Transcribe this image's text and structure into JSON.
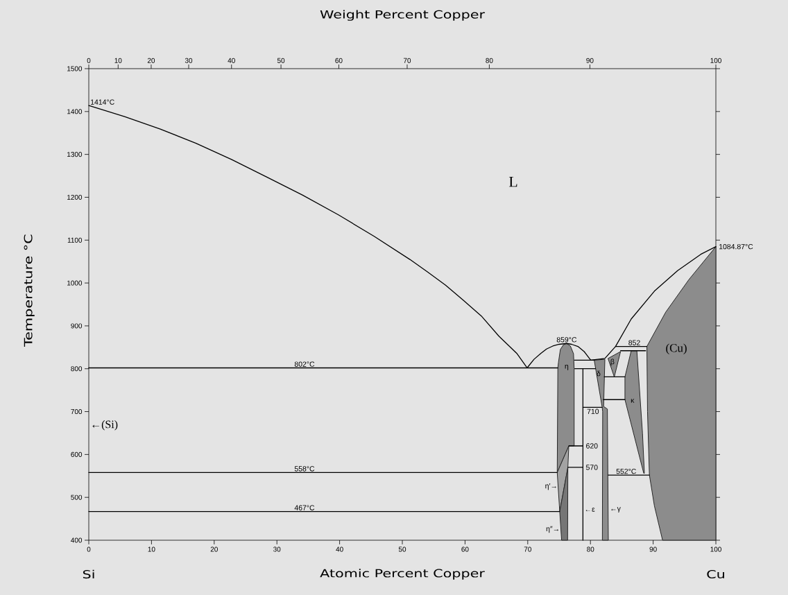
{
  "chart_data": {
    "type": "line",
    "xlabel": "Atomic Percent Copper",
    "ylabel": "Temperature °C",
    "x2label": "Weight Percent Copper",
    "xlim": [
      0,
      100
    ],
    "ylim": [
      400,
      1500
    ],
    "xticks": [
      0,
      10,
      20,
      30,
      40,
      50,
      60,
      70,
      80,
      90,
      100
    ],
    "yticks": [
      400,
      500,
      600,
      700,
      800,
      900,
      1000,
      1100,
      1200,
      1300,
      1400,
      1500
    ],
    "series": [
      {
        "type": "area",
        "color": "#8c8c8c",
        "x": [
          74.9,
          75.2,
          75.7,
          76.2,
          76.8,
          77.3,
          77.4,
          77.4,
          76.55,
          74.7,
          74.8
        ],
        "values": [
          815,
          845,
          856,
          859,
          853,
          835,
          800,
          620,
          620,
          558,
          802
        ]
      },
      {
        "type": "area",
        "color": "#a3a3a3",
        "x": [
          74.7,
          76.55,
          76.4,
          75.1
        ],
        "values": [
          558,
          620,
          570,
          467
        ]
      },
      {
        "type": "area",
        "color": "#767676",
        "x": [
          75.1,
          76.4,
          76.36,
          75.4
        ],
        "values": [
          467,
          570,
          400,
          400
        ]
      },
      {
        "type": "area",
        "color": "#8c8c8c",
        "x": [
          80.6,
          82.3,
          82.1,
          82.7,
          82.85,
          81.9,
          81.95,
          81.85
        ],
        "values": [
          820,
          822,
          712,
          706,
          400,
          400,
          700,
          712
        ]
      },
      {
        "type": "area",
        "color": "#8c8c8c",
        "x": [
          82.8,
          84.8,
          83.8
        ],
        "values": [
          824,
          840,
          781
        ]
      },
      {
        "type": "area",
        "color": "#8c8c8c",
        "x": [
          86.5,
          87.4,
          88.3,
          88.6,
          88.5,
          85.5,
          85.5
        ],
        "values": [
          842,
          842,
          650,
          556,
          556,
          728,
          781
        ]
      },
      {
        "type": "area",
        "color": "#8c8c8c",
        "x": [
          89.0,
          92.0,
          95.7,
          100,
          100,
          91.5,
          90.2,
          89.4,
          89.1
        ],
        "values": [
          852,
          932,
          1008,
          1084.87,
          400,
          400,
          480,
          552,
          700
        ]
      },
      {
        "color": "#000000",
        "x": [
          0,
          5.7,
          11.4,
          17.1,
          22.8,
          28.4,
          34.1,
          39.8,
          45.5,
          51.2,
          54.0,
          56.9,
          59.7,
          62.6,
          65.4,
          68.3,
          69.9,
          71,
          72.1,
          73,
          74,
          75,
          76.2,
          77,
          78,
          79,
          80.05,
          82.3,
          84.0,
          86.5,
          90.2,
          93.9,
          97.6,
          100
        ],
        "values": [
          1414,
          1388,
          1359,
          1326,
          1288,
          1247,
          1205,
          1159,
          1109,
          1055,
          1026,
          995,
          960,
          923,
          876,
          835,
          802,
          822,
          836,
          846,
          853,
          857,
          859,
          857,
          852,
          840,
          820,
          824,
          852,
          916,
          981,
          1029,
          1067,
          1084.87
        ]
      },
      {
        "color": "#000000",
        "x": [
          0,
          74.8
        ],
        "values": [
          802,
          802
        ]
      },
      {
        "color": "#000000",
        "x": [
          0,
          74.7
        ],
        "values": [
          558,
          558
        ]
      },
      {
        "color": "#000000",
        "x": [
          0,
          75.1
        ],
        "values": [
          467,
          467
        ]
      },
      {
        "color": "#000000",
        "x": [
          77.45,
          80.6
        ],
        "values": [
          820,
          820
        ]
      },
      {
        "color": "#000000",
        "x": [
          77.5,
          80.8
        ],
        "values": [
          800,
          800
        ]
      },
      {
        "color": "#000000",
        "x": [
          78.8,
          78.8
        ],
        "values": [
          400,
          800
        ]
      },
      {
        "color": "#000000",
        "x": [
          78.8,
          81.85
        ],
        "values": [
          710,
          710
        ]
      },
      {
        "color": "#000000",
        "x": [
          76.55,
          78.8
        ],
        "values": [
          620,
          620
        ]
      },
      {
        "color": "#000000",
        "x": [
          76.4,
          78.8
        ],
        "values": [
          570,
          570
        ]
      },
      {
        "color": "#000000",
        "x": [
          84.0,
          89.0
        ],
        "values": [
          852,
          852
        ]
      },
      {
        "color": "#000000",
        "x": [
          84.8,
          88.8
        ],
        "values": [
          842,
          842
        ]
      },
      {
        "color": "#000000",
        "x": [
          82.2,
          85.5
        ],
        "values": [
          781,
          781
        ]
      },
      {
        "color": "#000000",
        "x": [
          82.05,
          85.5
        ],
        "values": [
          728,
          728
        ]
      },
      {
        "color": "#000000",
        "x": [
          82.8,
          89.4
        ],
        "values": [
          552,
          552
        ]
      }
    ],
    "annotations": [
      {
        "text": "1414°C",
        "x": 0,
        "y": 1414
      },
      {
        "text": "1084.87°C",
        "x": 100,
        "y": 1084.87
      },
      "L",
      {
        "text": "802°C",
        "x": 34.4,
        "y": 802
      },
      {
        "text": "558°C",
        "x": 34.4,
        "y": 558
      },
      {
        "text": "467°C",
        "x": 34.4,
        "y": 467
      },
      "←(Si)",
      {
        "text": "859°C",
        "x": 76.2,
        "y": 859
      },
      {
        "text": "852",
        "x": 87.0,
        "y": 852
      },
      "(Cu)",
      "η",
      "δ",
      "β",
      "κ",
      {
        "text": "710",
        "x": 80.4,
        "y": 710
      },
      {
        "text": "620",
        "x": 78.8,
        "y": 620
      },
      {
        "text": "570",
        "x": 78.8,
        "y": 570
      },
      {
        "text": "552°C",
        "x": 85.7,
        "y": 552
      },
      "η′→",
      "η″→",
      "←ε",
      "←γ",
      "Si",
      "Cu",
      "0",
      "10",
      "20",
      "30",
      "40",
      "50",
      "60",
      "70",
      "80",
      "90",
      "100"
    ]
  }
}
